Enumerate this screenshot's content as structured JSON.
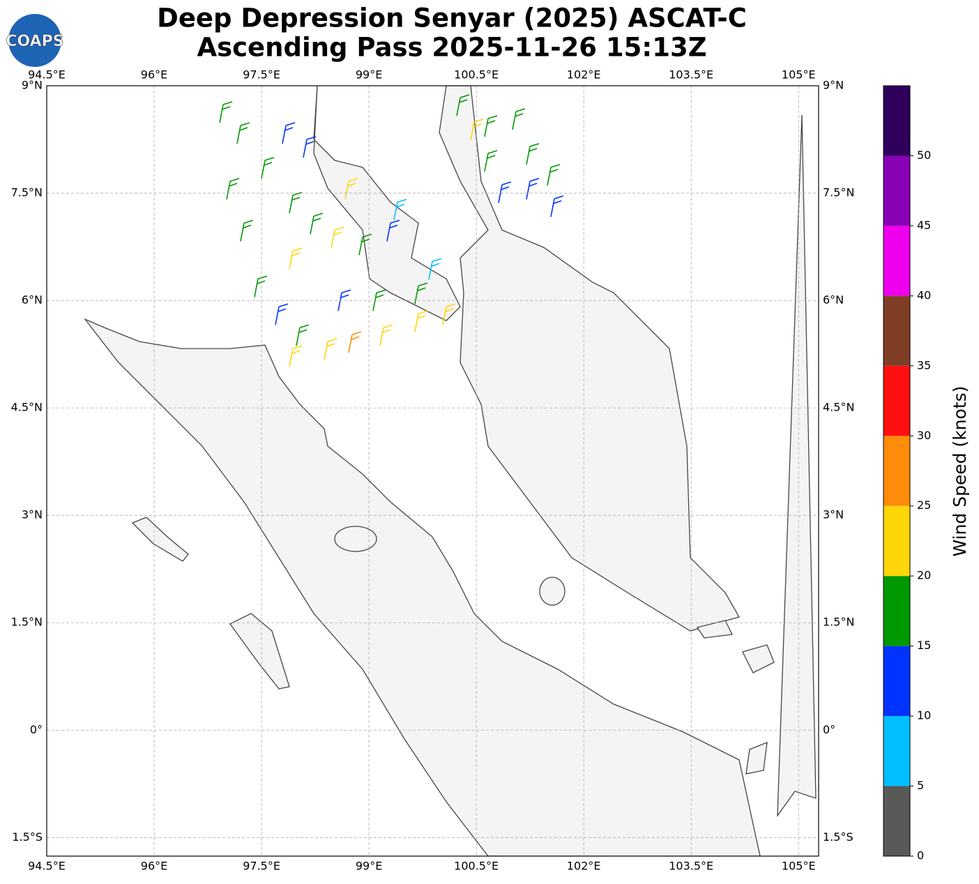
{
  "logo": "COAPS",
  "title": [
    "Deep Depression Senyar (2025) ASCAT-C",
    "Ascending Pass 2025-11-26 15:13Z"
  ],
  "map": {
    "lon_range": [
      94.5,
      105.28
    ],
    "lat_range": [
      -1.76,
      9
    ],
    "grid": true,
    "lon_ticks": [
      {
        "value": 94.5,
        "label": "94.5°E"
      },
      {
        "value": 96,
        "label": "96°E"
      },
      {
        "value": 97.5,
        "label": "97.5°E"
      },
      {
        "value": 99,
        "label": "99°E"
      },
      {
        "value": 100.5,
        "label": "100.5°E"
      },
      {
        "value": 102,
        "label": "102°E"
      },
      {
        "value": 103.5,
        "label": "103.5°E"
      },
      {
        "value": 105,
        "label": "105°E"
      }
    ],
    "lat_ticks": [
      {
        "value": 9,
        "label": "9°N"
      },
      {
        "value": 7.5,
        "label": "7.5°N"
      },
      {
        "value": 6,
        "label": "6°N"
      },
      {
        "value": 4.5,
        "label": "4.5°N"
      },
      {
        "value": 3,
        "label": "3°N"
      },
      {
        "value": 1.5,
        "label": "1.5°N"
      },
      {
        "value": 0,
        "label": "0°"
      },
      {
        "value": -1.5,
        "label": "1.5°S"
      }
    ]
  },
  "colorbar": {
    "label": "Wind Speed (knots)",
    "bins": [
      0,
      5,
      10,
      15,
      20,
      25,
      30,
      35,
      40,
      45,
      50,
      55
    ],
    "colors": [
      "#595959",
      "#00bfff",
      "#0033ff",
      "#009900",
      "#ffd60a",
      "#ff8c0a",
      "#ff1010",
      "#803d26",
      "#ee00ee",
      "#8800b3",
      "#2e005c"
    ],
    "ticks": [
      0,
      5,
      10,
      15,
      20,
      25,
      30,
      35,
      40,
      45,
      50
    ]
  }
}
